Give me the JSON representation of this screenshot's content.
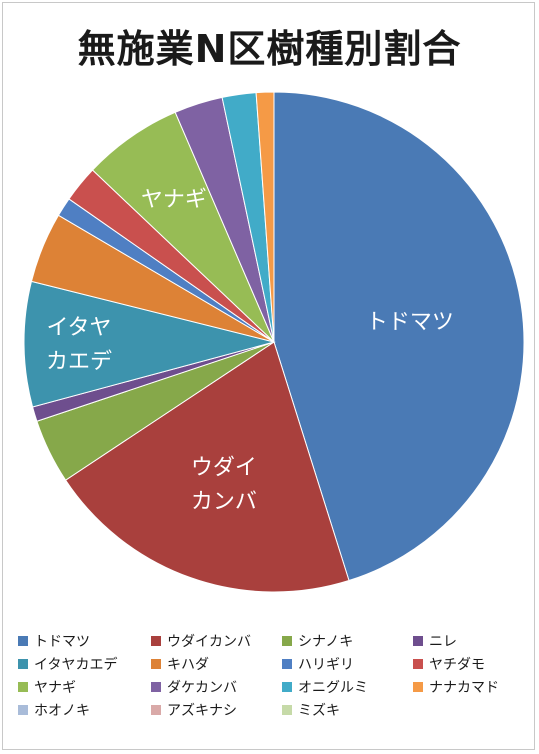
{
  "chart_data": {
    "type": "pie",
    "title": "無施業N区樹種別割合",
    "categories": [
      "トドマツ",
      "ウダイカンバ",
      "シナノキ",
      "ニレ",
      "イタヤカエデ",
      "キハダ",
      "ハリギリ",
      "ヤチダモ",
      "ヤナギ",
      "ダケカンバ",
      "オニグルミ",
      "ナナカマド",
      "ホオノキ",
      "アズキナシ",
      "ミズキ"
    ],
    "values": [
      47.5,
      21.6,
      4.4,
      1.0,
      8.5,
      4.8,
      1.3,
      2.5,
      6.8,
      3.3,
      2.3,
      1.2,
      0.0,
      0.0,
      0.0
    ],
    "colors": [
      "#4a7ab5",
      "#a9403d",
      "#86a84a",
      "#6e4e8e",
      "#3d93ad",
      "#dd8236",
      "#4f7fc3",
      "#c9504e",
      "#97bc55",
      "#7f62a3",
      "#41abc8",
      "#f59a46",
      "#a9bcd9",
      "#d9a9a8",
      "#c6daa8"
    ],
    "data_labels": [
      {
        "category": "トドマツ",
        "lines": [
          "トドマツ"
        ]
      },
      {
        "category": "ウダイカンバ",
        "lines": [
          "ウダイ",
          "カンバ"
        ]
      },
      {
        "category": "イタヤカエデ",
        "lines": [
          "イタヤ",
          "カエデ"
        ]
      },
      {
        "category": "ヤナギ",
        "lines": [
          "ヤナギ"
        ]
      }
    ],
    "legend_position": "bottom"
  }
}
